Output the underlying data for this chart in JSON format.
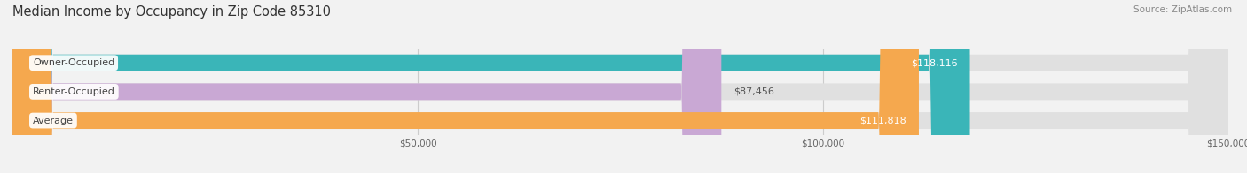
{
  "title": "Median Income by Occupancy in Zip Code 85310",
  "source": "Source: ZipAtlas.com",
  "categories": [
    "Owner-Occupied",
    "Renter-Occupied",
    "Average"
  ],
  "values": [
    118116,
    87456,
    111818
  ],
  "bar_colors": [
    "#3ab5b8",
    "#c9a8d4",
    "#f5a84e"
  ],
  "bar_labels": [
    "$118,116",
    "$87,456",
    "$111,818"
  ],
  "label_colors": [
    "#ffffff",
    "#555555",
    "#ffffff"
  ],
  "xlim": [
    0,
    150000
  ],
  "xticks": [
    0,
    50000,
    100000,
    150000
  ],
  "xticklabels": [
    "",
    "$50,000",
    "$100,000",
    "$150,000"
  ],
  "background_color": "#f2f2f2",
  "bar_bg_color": "#e0e0e0",
  "title_fontsize": 10.5,
  "source_fontsize": 7.5,
  "label_fontsize": 8,
  "bar_height": 0.58,
  "inside_threshold": 100000
}
